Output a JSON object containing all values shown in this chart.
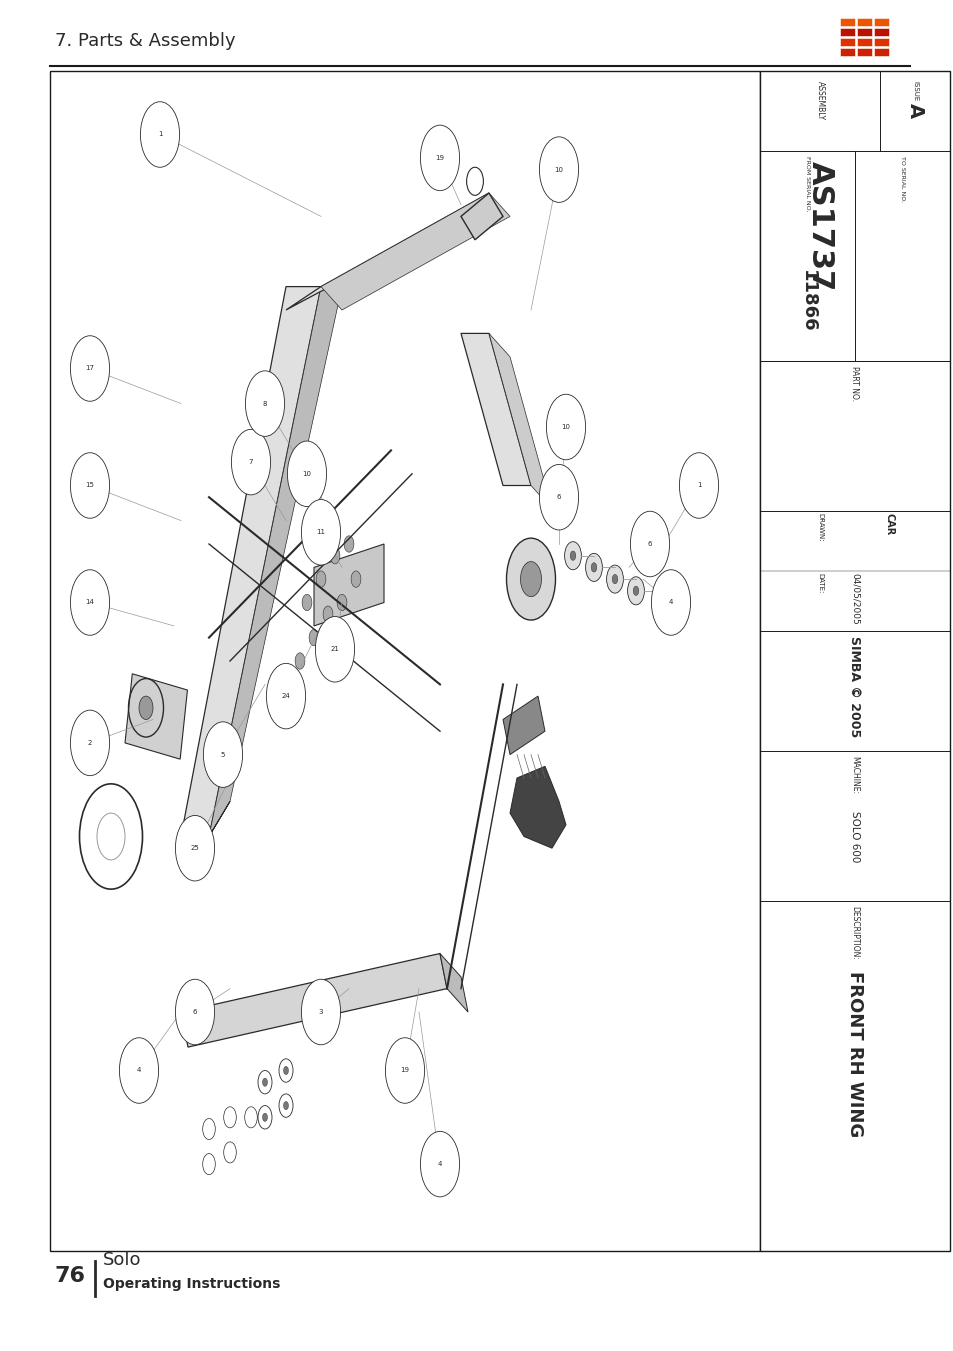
{
  "page_title": "7. Parts & Assembly",
  "page_number": "76",
  "book_title": "Solo",
  "book_subtitle": "Operating Instructions",
  "bg_color": "#ffffff",
  "text_color": "#2a2a2a",
  "line_color": "#1a1a1a",
  "title_block": {
    "description_label": "DESCRIPTION:",
    "description_value": "FRONT RH WING",
    "machine_label": "MACHINE:",
    "machine_value": "SOLO 600",
    "simba_text": "SIMBA © 2005",
    "drawn_label": "DRAWN:",
    "drawn_value": "CAR",
    "date_label": "DATE:",
    "date_value": "04/05/2005",
    "part_no_label": "PART NO.",
    "part_no_value": "11866",
    "from_serial_label": "FROM SERIAL NO.",
    "to_serial_label": "TO SERIAL NO.",
    "assembly_label": "ASSEMBLY",
    "assembly_value": "AS1737",
    "issue_label": "ISSUE",
    "issue_value": "A"
  }
}
